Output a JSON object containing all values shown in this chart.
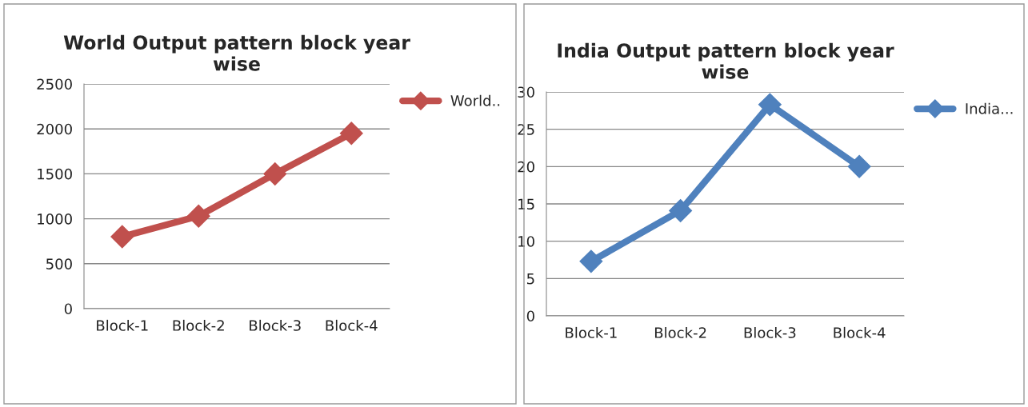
{
  "chart_data": [
    {
      "type": "line",
      "title": "World Output pattern block year\nwise",
      "categories": [
        "Block-1",
        "Block-2",
        "Block-3",
        "Block-4"
      ],
      "series": [
        {
          "name": "World..",
          "color": "#c0504d",
          "values": [
            800,
            1030,
            1500,
            1950
          ]
        }
      ],
      "ylim": [
        0,
        2500
      ],
      "yticks": [
        0,
        500,
        1000,
        1500,
        2000,
        2500
      ],
      "grid": "y",
      "legend": "right",
      "marker": "diamond",
      "line_style": "solid"
    },
    {
      "type": "line",
      "title": "India Output pattern block year\nwise",
      "categories": [
        "Block-1",
        "Block-2",
        "Block-3",
        "Block-4"
      ],
      "series": [
        {
          "name": "India...",
          "color": "#4f81bd",
          "values": [
            7.3,
            14.1,
            28.3,
            20
          ]
        }
      ],
      "ylim": [
        0,
        30
      ],
      "yticks": [
        0,
        5,
        10,
        15,
        20,
        25,
        30
      ],
      "grid": "y",
      "legend": "right",
      "marker": "diamond",
      "line_style": "solid"
    }
  ]
}
